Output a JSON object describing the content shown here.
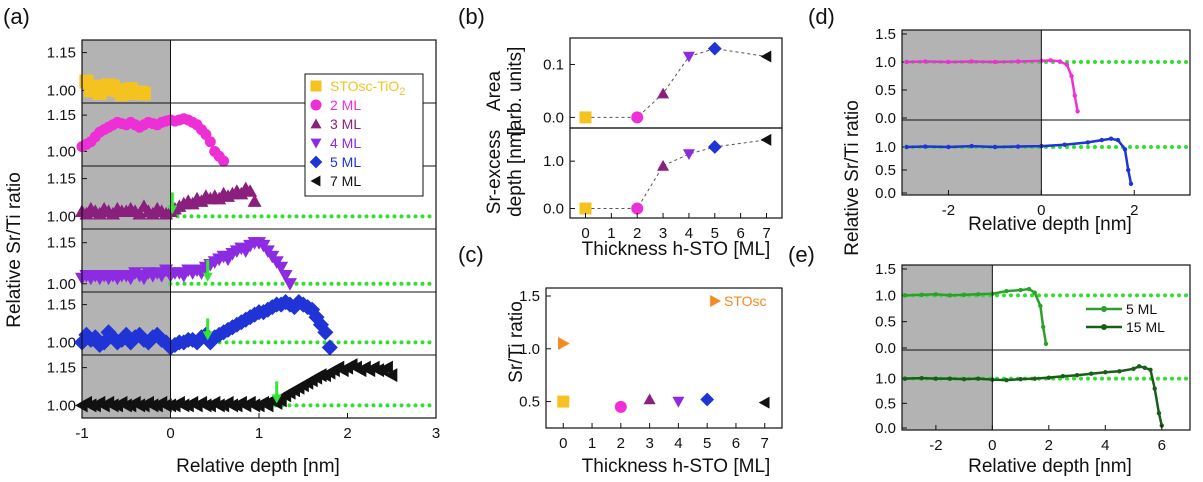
{
  "panel_labels": {
    "a": "(a)",
    "b": "(b)",
    "c": "(c)",
    "d": "(d)",
    "e": "(e)"
  },
  "colors": {
    "STOsc": "#f5c320",
    "ml2": "#ee2fd6",
    "ml3": "#8a1f7d",
    "ml4": "#8b2be2",
    "ml5": "#1f33d6",
    "ml7": "#111111",
    "stosc_orange": "#f58a1f",
    "ref_dots": "#2fe02f",
    "arrow": "#32e632",
    "shade": "#b3b3b3",
    "e_light": "#2aa12a",
    "e_dark": "#1a5c1a"
  },
  "chart_data": [
    {
      "id": "a",
      "type": "scatter",
      "xlabel": "Relative depth [nm]",
      "ylabel": "Relative Sr/Ti ratio",
      "xlim": [
        -1,
        3
      ],
      "xticks": [
        "-1",
        "0",
        "1",
        "2",
        "3"
      ],
      "shaded_x": [
        -1,
        0
      ],
      "legend": [
        "STOsc-TiO",
        "2 ML",
        "3 ML",
        "4 ML",
        "5 ML",
        "7 ML"
      ],
      "legend_sub": "2",
      "strips": [
        {
          "name": "STOsc-TiO2",
          "marker": "square",
          "color": "#f5c320",
          "ylim": [
            0.95,
            1.2
          ],
          "yticks": [
            "1.00",
            "1.15"
          ],
          "tickvals": [
            1.0,
            1.15
          ],
          "ref": false,
          "x": [
            -0.95,
            -0.9,
            -0.85,
            -0.8,
            -0.75,
            -0.7,
            -0.65,
            -0.6,
            -0.55,
            -0.5,
            -0.45,
            -0.4,
            -0.35,
            -0.3
          ],
          "y": [
            1.035,
            1.0,
            1.015,
            0.99,
            1.005,
            1.02,
            1.015,
            1.0,
            0.985,
            0.995,
            1.005,
            0.99,
            0.992,
            0.988
          ]
        },
        {
          "name": "2 ML",
          "marker": "circle",
          "color": "#ee2fd6",
          "ylim": [
            0.94,
            1.2
          ],
          "yticks": [
            "1.00",
            "1.15"
          ],
          "tickvals": [
            1.0,
            1.15
          ],
          "ref": false,
          "x": [
            -1.0,
            -0.95,
            -0.9,
            -0.85,
            -0.8,
            -0.75,
            -0.7,
            -0.65,
            -0.6,
            -0.55,
            -0.5,
            -0.45,
            -0.4,
            -0.35,
            -0.3,
            -0.25,
            -0.2,
            -0.15,
            -0.1,
            -0.05,
            0.0,
            0.05,
            0.1,
            0.15,
            0.2,
            0.25,
            0.3,
            0.35,
            0.4,
            0.45,
            0.5,
            0.55,
            0.6
          ],
          "y": [
            1.02,
            1.03,
            1.04,
            1.06,
            1.08,
            1.09,
            1.1,
            1.11,
            1.12,
            1.115,
            1.11,
            1.12,
            1.11,
            1.1,
            1.11,
            1.12,
            1.115,
            1.11,
            1.12,
            1.125,
            1.13,
            1.125,
            1.13,
            1.135,
            1.13,
            1.12,
            1.11,
            1.09,
            1.07,
            1.04,
            1.0,
            0.98,
            0.96
          ]
        },
        {
          "name": "3 ML",
          "marker": "triangle-up",
          "color": "#8a1f7d",
          "ylim": [
            0.95,
            1.2
          ],
          "yticks": [
            "1.00",
            "1.15"
          ],
          "tickvals": [
            1.0,
            1.15
          ],
          "ref": true,
          "arrow_x": 0.02,
          "x": [
            -1.0,
            -0.95,
            -0.9,
            -0.85,
            -0.8,
            -0.75,
            -0.7,
            -0.65,
            -0.6,
            -0.55,
            -0.5,
            -0.45,
            -0.4,
            -0.35,
            -0.3,
            -0.25,
            -0.2,
            -0.15,
            -0.1,
            -0.05,
            0.0,
            0.05,
            0.1,
            0.15,
            0.2,
            0.25,
            0.3,
            0.35,
            0.4,
            0.45,
            0.5,
            0.55,
            0.6,
            0.65,
            0.7,
            0.75,
            0.8,
            0.85,
            0.9,
            0.95
          ],
          "y": [
            1.02,
            1.01,
            1.03,
            1.02,
            1.01,
            1.03,
            1.02,
            1.01,
            1.03,
            1.02,
            1.02,
            1.03,
            1.02,
            1.01,
            1.04,
            1.02,
            1.01,
            1.03,
            1.02,
            1.01,
            1.02,
            1.03,
            1.04,
            1.05,
            1.06,
            1.05,
            1.07,
            1.06,
            1.08,
            1.07,
            1.08,
            1.07,
            1.09,
            1.08,
            1.09,
            1.1,
            1.09,
            1.11,
            1.1,
            1.06
          ]
        },
        {
          "name": "4 ML",
          "marker": "triangle-down",
          "color": "#8b2be2",
          "ylim": [
            0.97,
            1.2
          ],
          "yticks": [
            "1.00",
            "1.15"
          ],
          "tickvals": [
            1.0,
            1.15
          ],
          "ref": true,
          "arrow_x": 0.42,
          "x": [
            -1.0,
            -0.95,
            -0.9,
            -0.85,
            -0.8,
            -0.75,
            -0.7,
            -0.65,
            -0.6,
            -0.55,
            -0.5,
            -0.45,
            -0.4,
            -0.35,
            -0.3,
            -0.25,
            -0.2,
            -0.15,
            -0.1,
            -0.05,
            0.0,
            0.05,
            0.1,
            0.15,
            0.2,
            0.25,
            0.3,
            0.35,
            0.4,
            0.45,
            0.5,
            0.55,
            0.6,
            0.65,
            0.7,
            0.75,
            0.8,
            0.85,
            0.9,
            0.95,
            1.0,
            1.05,
            1.1,
            1.15,
            1.2,
            1.25,
            1.3,
            1.35
          ],
          "y": [
            1.02,
            1.03,
            1.02,
            1.03,
            1.02,
            1.03,
            1.02,
            1.03,
            1.02,
            1.03,
            1.03,
            1.02,
            1.04,
            1.03,
            1.02,
            1.04,
            1.03,
            1.04,
            1.03,
            1.05,
            1.03,
            1.04,
            1.04,
            1.03,
            1.05,
            1.04,
            1.05,
            1.04,
            1.06,
            1.07,
            1.08,
            1.09,
            1.1,
            1.09,
            1.11,
            1.12,
            1.13,
            1.12,
            1.14,
            1.15,
            1.15,
            1.14,
            1.12,
            1.1,
            1.08,
            1.06,
            1.03,
            1.0
          ]
        },
        {
          "name": "5 ML",
          "marker": "diamond",
          "color": "#1f33d6",
          "ylim": [
            0.95,
            1.2
          ],
          "yticks": [
            "1.00",
            "1.15"
          ],
          "tickvals": [
            1.0,
            1.15
          ],
          "ref": true,
          "arrow_x": 0.42,
          "x": [
            -1.0,
            -0.95,
            -0.9,
            -0.85,
            -0.8,
            -0.75,
            -0.7,
            -0.65,
            -0.6,
            -0.55,
            -0.5,
            -0.45,
            -0.4,
            -0.35,
            -0.3,
            -0.25,
            -0.2,
            -0.15,
            -0.1,
            -0.05,
            0.0,
            0.05,
            0.1,
            0.15,
            0.2,
            0.25,
            0.3,
            0.35,
            0.4,
            0.45,
            0.5,
            0.55,
            0.6,
            0.65,
            0.7,
            0.75,
            0.8,
            0.85,
            0.9,
            0.95,
            1.0,
            1.05,
            1.1,
            1.15,
            1.2,
            1.25,
            1.3,
            1.35,
            1.4,
            1.45,
            1.5,
            1.55,
            1.6,
            1.65,
            1.7,
            1.75,
            1.8
          ],
          "y": [
            1.0,
            1.03,
            1.01,
            1.02,
            0.99,
            1.0,
            1.04,
            1.02,
            1.0,
            1.01,
            1.03,
            1.0,
            1.02,
            1.03,
            1.01,
            1.0,
            1.02,
            1.03,
            1.01,
            1.0,
            0.98,
            0.99,
            1.0,
            1.0,
            1.01,
            1.01,
            1.0,
            1.02,
            1.03,
            1.0,
            1.02,
            1.03,
            1.04,
            1.05,
            1.06,
            1.07,
            1.08,
            1.09,
            1.1,
            1.11,
            1.12,
            1.12,
            1.13,
            1.14,
            1.15,
            1.15,
            1.16,
            1.15,
            1.14,
            1.16,
            1.15,
            1.14,
            1.13,
            1.1,
            1.07,
            1.04,
            0.98
          ]
        },
        {
          "name": "7 ML",
          "marker": "triangle-left",
          "color": "#111111",
          "ylim": [
            0.95,
            1.2
          ],
          "yticks": [
            "1.00",
            "1.15"
          ],
          "tickvals": [
            1.0,
            1.15
          ],
          "ref": true,
          "arrow_x": 1.2,
          "x": [
            -1.0,
            -0.95,
            -0.9,
            -0.85,
            -0.8,
            -0.75,
            -0.7,
            -0.65,
            -0.6,
            -0.55,
            -0.5,
            -0.45,
            -0.4,
            -0.35,
            -0.3,
            -0.25,
            -0.2,
            -0.15,
            -0.1,
            -0.05,
            0.0,
            0.05,
            0.1,
            0.15,
            0.2,
            0.25,
            0.3,
            0.35,
            0.4,
            0.45,
            0.5,
            0.55,
            0.6,
            0.65,
            0.7,
            0.75,
            0.8,
            0.85,
            0.9,
            0.95,
            1.0,
            1.05,
            1.1,
            1.15,
            1.2,
            1.25,
            1.3,
            1.35,
            1.4,
            1.45,
            1.5,
            1.55,
            1.6,
            1.65,
            1.7,
            1.75,
            1.8,
            1.85,
            1.9,
            1.95,
            2.0,
            2.05,
            2.1,
            2.15,
            2.2,
            2.25,
            2.3,
            2.35,
            2.4,
            2.45,
            2.5
          ],
          "y": [
            1.0,
            1.01,
            1.0,
            1.0,
            1.01,
            1.0,
            1.01,
            1.0,
            1.0,
            1.01,
            1.0,
            1.0,
            1.01,
            1.0,
            1.0,
            1.01,
            1.0,
            1.0,
            1.01,
            1.0,
            1.0,
            1.0,
            1.01,
            1.0,
            1.0,
            1.01,
            1.0,
            1.01,
            1.0,
            1.0,
            1.01,
            1.0,
            1.0,
            1.01,
            1.0,
            1.0,
            1.01,
            1.0,
            1.01,
            1.0,
            1.0,
            1.01,
            1.0,
            1.02,
            1.01,
            1.02,
            1.04,
            1.05,
            1.06,
            1.07,
            1.08,
            1.09,
            1.1,
            1.11,
            1.12,
            1.12,
            1.13,
            1.14,
            1.15,
            1.14,
            1.15,
            1.16,
            1.15,
            1.14,
            1.15,
            1.14,
            1.15,
            1.14,
            1.14,
            1.15,
            1.12
          ]
        }
      ]
    },
    {
      "id": "b",
      "type": "scatter",
      "xlabel": "Thickness h-STO [ML]",
      "xticks": [
        "0",
        "1",
        "2",
        "3",
        "4",
        "5",
        "6",
        "7"
      ],
      "ylabel_top": [
        "Area",
        "[arb. units]"
      ],
      "ylabel_bottom": [
        "Sr-excess",
        "depth [nm]"
      ],
      "top": {
        "ylim": [
          -0.02,
          0.15
        ],
        "yticks": [
          "0.0",
          "0.1"
        ],
        "tickvals": [
          0.0,
          0.1
        ],
        "x": [
          0,
          2,
          3,
          4,
          5,
          7
        ],
        "y": [
          0.0,
          0.0,
          0.045,
          0.115,
          0.13,
          0.115
        ]
      },
      "bottom": {
        "ylim": [
          -0.2,
          1.7
        ],
        "yticks": [
          "0.0",
          "1.0"
        ],
        "tickvals": [
          0.0,
          1.0
        ],
        "x": [
          0,
          2,
          3,
          4,
          5,
          7
        ],
        "y": [
          0.0,
          0.0,
          0.9,
          1.15,
          1.3,
          1.45
        ]
      },
      "markers": [
        "square",
        "circle",
        "triangle-up",
        "triangle-down",
        "diamond",
        "triangle-left"
      ],
      "marker_colors": [
        "#f5c320",
        "#ee2fd6",
        "#8a1f7d",
        "#8b2be2",
        "#1f33d6",
        "#111111"
      ]
    },
    {
      "id": "c",
      "type": "scatter",
      "xlabel": "Thickness h-STO [ML]",
      "ylabel": "Sr/Ti ratio",
      "xticks": [
        "0",
        "1",
        "2",
        "3",
        "4",
        "5",
        "6",
        "7"
      ],
      "ylim": [
        0.25,
        1.5
      ],
      "yticks": [
        "0.5",
        "1.0",
        "1.5"
      ],
      "tickvals": [
        0.5,
        1.0,
        1.5
      ],
      "legend": "STOsc",
      "stosc_point": {
        "x": 0,
        "y": 1.05
      },
      "x": [
        0,
        2,
        3,
        4,
        5,
        7
      ],
      "y": [
        0.5,
        0.45,
        0.52,
        0.5,
        0.52,
        0.49
      ],
      "markers": [
        "square",
        "circle",
        "triangle-up",
        "triangle-down",
        "diamond",
        "triangle-left"
      ],
      "marker_colors": [
        "#f5c320",
        "#ee2fd6",
        "#8a1f7d",
        "#8b2be2",
        "#1f33d6",
        "#111111"
      ]
    },
    {
      "id": "d",
      "type": "line",
      "xlabel": "Relative depth [nm]",
      "xlim": [
        -3,
        3.2
      ],
      "xticks": [
        "-2",
        "0",
        "2"
      ],
      "tickvals_x": [
        -2,
        0,
        2
      ],
      "shaded_x": [
        -3,
        0
      ],
      "ylim": [
        0.0,
        1.5
      ],
      "yticks": [
        "0.0",
        "0.5",
        "1.0",
        "1.5"
      ],
      "yticks_bottom": [
        "0.0",
        "0.5",
        "1.0"
      ],
      "series": [
        {
          "name": "top",
          "color": "#ee2fd6",
          "x": [
            -2.9,
            -2.5,
            -2.0,
            -1.5,
            -1.0,
            -0.5,
            0.0,
            0.2,
            0.4,
            0.55,
            0.65,
            0.72,
            0.78
          ],
          "y": [
            1.0,
            1.01,
            1.0,
            1.01,
            1.0,
            1.01,
            1.02,
            1.03,
            1.01,
            0.95,
            0.75,
            0.4,
            0.12
          ]
        },
        {
          "name": "bottom",
          "color": "#1f33d6",
          "x": [
            -2.9,
            -2.5,
            -2.0,
            -1.5,
            -1.0,
            -0.5,
            0.0,
            0.5,
            1.0,
            1.3,
            1.5,
            1.65,
            1.8,
            1.87,
            1.93
          ],
          "y": [
            1.0,
            1.01,
            1.0,
            1.02,
            1.0,
            1.01,
            1.02,
            1.05,
            1.1,
            1.15,
            1.18,
            1.15,
            0.95,
            0.5,
            0.2
          ]
        }
      ]
    },
    {
      "id": "e",
      "type": "line",
      "xlabel": "Relative depth [nm]",
      "xlim": [
        -3.2,
        7.0
      ],
      "xticks": [
        "-2",
        "0",
        "2",
        "4",
        "6"
      ],
      "tickvals_x": [
        -2,
        0,
        2,
        4,
        6
      ],
      "shaded_x": [
        -3.2,
        0
      ],
      "ylim": [
        0.0,
        1.5
      ],
      "yticks": [
        "0.0",
        "0.5",
        "1.0",
        "1.5"
      ],
      "yticks_bottom": [
        "0.0",
        "0.5",
        "1.0"
      ],
      "legend": [
        "5  ML",
        "15 ML"
      ],
      "series": [
        {
          "name": "5 ML",
          "color": "#2aa12a",
          "x": [
            -3.1,
            -2.5,
            -2.0,
            -1.5,
            -1.0,
            -0.5,
            0.0,
            0.5,
            1.0,
            1.3,
            1.5,
            1.7,
            1.8,
            1.9
          ],
          "y": [
            1.0,
            1.01,
            1.02,
            1.0,
            1.01,
            1.02,
            1.03,
            1.08,
            1.1,
            1.12,
            1.05,
            0.8,
            0.4,
            0.08
          ]
        },
        {
          "name": "15 ML",
          "color": "#1a5c1a",
          "x": [
            -3.1,
            -2.5,
            -2.0,
            -1.5,
            -1.0,
            -0.5,
            0.0,
            0.5,
            1.0,
            1.5,
            2.0,
            2.5,
            3.0,
            3.5,
            4.0,
            4.5,
            5.0,
            5.2,
            5.4,
            5.6,
            5.75,
            5.9,
            6.0
          ],
          "y": [
            1.0,
            1.01,
            1.0,
            1.0,
            0.99,
            1.0,
            0.98,
            0.97,
            0.99,
            1.0,
            1.02,
            1.05,
            1.07,
            1.1,
            1.13,
            1.15,
            1.2,
            1.25,
            1.22,
            1.18,
            0.8,
            0.3,
            0.05
          ]
        }
      ]
    }
  ]
}
